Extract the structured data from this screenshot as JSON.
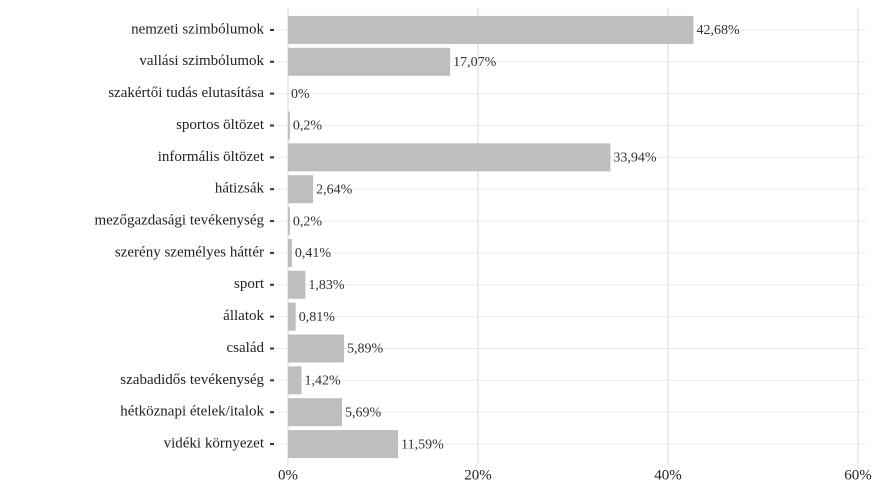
{
  "chart_data": {
    "type": "barh",
    "categories": [
      "nemzeti szimbólumok",
      "vallási szimbólumok",
      "szakértői tudás elutasítása",
      "sportos öltözet",
      "informális öltözet",
      "hátizsák",
      "mezőgazdasági tevékenység",
      "szerény személyes háttér",
      "sport",
      "állatok",
      "család",
      "szabadidős tevékenység",
      "hétköznapi ételek/italok",
      "vidéki környezet"
    ],
    "values": [
      42.68,
      17.07,
      0,
      0.2,
      33.94,
      2.64,
      0.2,
      0.41,
      1.83,
      0.81,
      5.89,
      1.42,
      5.69,
      11.59
    ],
    "value_labels": [
      "42,68%",
      "17,07%",
      "0%",
      "0,2%",
      "33,94%",
      "2,64%",
      "0,2%",
      "0,41%",
      "1,83%",
      "0,81%",
      "5,89%",
      "1,42%",
      "5,69%",
      "11,59%"
    ],
    "color": "#bebebe",
    "xlim": [
      0,
      60
    ],
    "xticks": [
      {
        "value": 0,
        "label": "0%"
      },
      {
        "value": 20,
        "label": "20%"
      },
      {
        "value": 40,
        "label": "40%"
      },
      {
        "value": 60,
        "label": "60%"
      }
    ],
    "grid": true
  }
}
